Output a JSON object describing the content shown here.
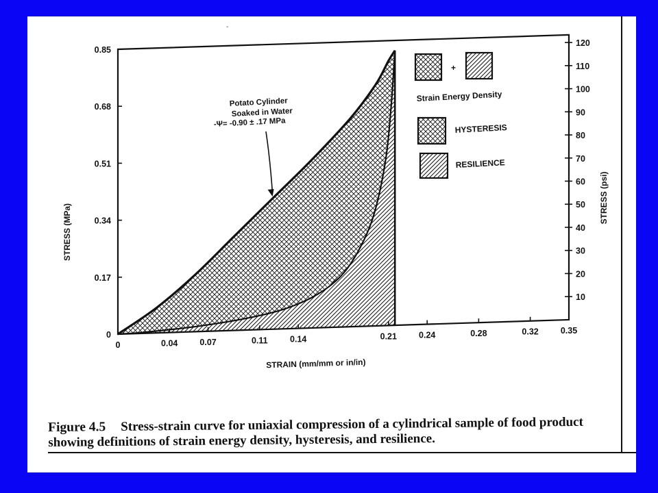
{
  "figure": {
    "caption_label": "Figure 4.5",
    "caption_text": "Stress-strain curve for uniaxial compression of a cylindrical sample of food product showing definitions of strain energy density, hysteresis, and resilience."
  },
  "chart_data": {
    "type": "area",
    "xlabel": "STRAIN (mm/mm or in/in)",
    "ylabel": "STRESS (MPa)",
    "y2label": "STRESS (psi)",
    "x_ticks": [
      "0",
      "0.04",
      "0.07",
      "0.11",
      "0.14",
      "0.21",
      "0.24",
      "0.28",
      "0.32",
      "0.35"
    ],
    "x_tick_values": [
      0,
      0.04,
      0.07,
      0.11,
      0.14,
      0.21,
      0.24,
      0.28,
      0.32,
      0.35
    ],
    "y_ticks": [
      "0",
      "0.17",
      "0.34",
      "0.51",
      "0.68",
      "0.85"
    ],
    "y_tick_values": [
      0,
      0.17,
      0.34,
      0.51,
      0.68,
      0.85
    ],
    "y2_ticks": [
      "10",
      "20",
      "30",
      "40",
      "50",
      "60",
      "70",
      "80",
      "90",
      "100",
      "110",
      "120"
    ],
    "y2_tick_values": [
      10,
      20,
      30,
      40,
      50,
      60,
      70,
      80,
      90,
      100,
      110,
      120
    ],
    "xlim": [
      0,
      0.35
    ],
    "ylim": [
      0,
      0.85
    ],
    "y2lim": [
      0,
      123.3
    ],
    "grid": false,
    "legend_position": "top-right",
    "series": [
      {
        "name": "loading curve",
        "points": [
          [
            0,
            0
          ],
          [
            0.03,
            0.075
          ],
          [
            0.06,
            0.17
          ],
          [
            0.09,
            0.28
          ],
          [
            0.12,
            0.39
          ],
          [
            0.15,
            0.5
          ],
          [
            0.18,
            0.62
          ],
          [
            0.2,
            0.72
          ],
          [
            0.21,
            0.79
          ],
          [
            0.215,
            0.82
          ]
        ]
      },
      {
        "name": "unloading curve",
        "points": [
          [
            0.215,
            0.82
          ],
          [
            0.212,
            0.65
          ],
          [
            0.208,
            0.5
          ],
          [
            0.2,
            0.35
          ],
          [
            0.19,
            0.25
          ],
          [
            0.175,
            0.16
          ],
          [
            0.155,
            0.1
          ],
          [
            0.13,
            0.06
          ],
          [
            0.1,
            0.035
          ],
          [
            0.06,
            0.015
          ],
          [
            0.02,
            0.003
          ],
          [
            0,
            0
          ]
        ]
      }
    ],
    "unload_end_strain": 0.215,
    "annotation": {
      "lines": [
        "Potato Cylinder",
        "Soaked in Water",
        "-Ψ= -0.90 ± .17 MPa"
      ],
      "arrow_target": [
        0.12,
        0.4
      ]
    },
    "legend": {
      "plus": "+",
      "title": "Strain Energy Density",
      "hysteresis": "HYSTERESIS",
      "resilience": "RESILIENCE"
    }
  }
}
